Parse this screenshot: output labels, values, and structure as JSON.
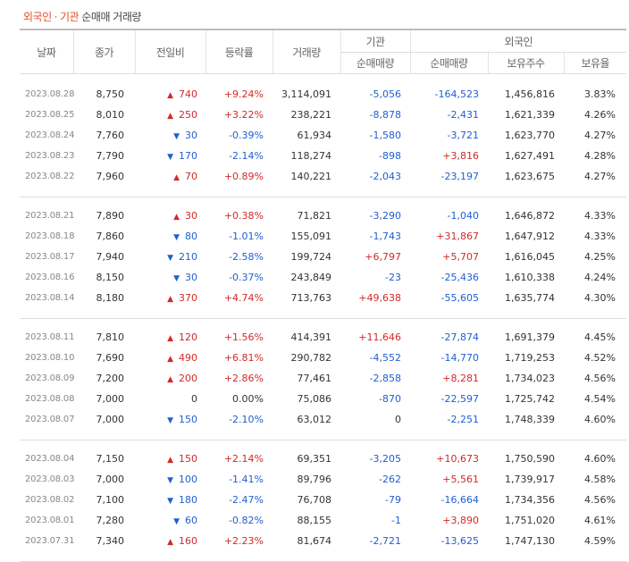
{
  "title": {
    "part1": "외국인",
    "separator": "·",
    "part2": "기관",
    "part3": "순매매 거래량"
  },
  "headers": {
    "date": "날짜",
    "close": "종가",
    "change": "전일비",
    "rate": "등락률",
    "volume": "거래량",
    "institution": "기관",
    "foreign": "외국인",
    "inst_net": "순매매량",
    "frgn_net": "순매매량",
    "frgn_hold": "보유주수",
    "frgn_ratio": "보유율"
  },
  "colors": {
    "up": "#d12a2a",
    "down": "#1f5fd0",
    "accent": "#e0502b"
  },
  "groups": [
    [
      {
        "date": "2023.08.28",
        "close": "8,750",
        "dir": "up",
        "change": "740",
        "rate": "+9.24%",
        "volume": "3,114,091",
        "inst": "-5,056",
        "frgn": "-164,523",
        "hold": "1,456,816",
        "ratio": "3.83%"
      },
      {
        "date": "2023.08.25",
        "close": "8,010",
        "dir": "up",
        "change": "250",
        "rate": "+3.22%",
        "volume": "238,221",
        "inst": "-8,878",
        "frgn": "-2,431",
        "hold": "1,621,339",
        "ratio": "4.26%"
      },
      {
        "date": "2023.08.24",
        "close": "7,760",
        "dir": "down",
        "change": "30",
        "rate": "-0.39%",
        "volume": "61,934",
        "inst": "-1,580",
        "frgn": "-3,721",
        "hold": "1,623,770",
        "ratio": "4.27%"
      },
      {
        "date": "2023.08.23",
        "close": "7,790",
        "dir": "down",
        "change": "170",
        "rate": "-2.14%",
        "volume": "118,274",
        "inst": "-898",
        "frgn": "+3,816",
        "hold": "1,627,491",
        "ratio": "4.28%"
      },
      {
        "date": "2023.08.22",
        "close": "7,960",
        "dir": "up",
        "change": "70",
        "rate": "+0.89%",
        "volume": "140,221",
        "inst": "-2,043",
        "frgn": "-23,197",
        "hold": "1,623,675",
        "ratio": "4.27%"
      }
    ],
    [
      {
        "date": "2023.08.21",
        "close": "7,890",
        "dir": "up",
        "change": "30",
        "rate": "+0.38%",
        "volume": "71,821",
        "inst": "-3,290",
        "frgn": "-1,040",
        "hold": "1,646,872",
        "ratio": "4.33%"
      },
      {
        "date": "2023.08.18",
        "close": "7,860",
        "dir": "down",
        "change": "80",
        "rate": "-1.01%",
        "volume": "155,091",
        "inst": "-1,743",
        "frgn": "+31,867",
        "hold": "1,647,912",
        "ratio": "4.33%"
      },
      {
        "date": "2023.08.17",
        "close": "7,940",
        "dir": "down",
        "change": "210",
        "rate": "-2.58%",
        "volume": "199,724",
        "inst": "+6,797",
        "frgn": "+5,707",
        "hold": "1,616,045",
        "ratio": "4.25%"
      },
      {
        "date": "2023.08.16",
        "close": "8,150",
        "dir": "down",
        "change": "30",
        "rate": "-0.37%",
        "volume": "243,849",
        "inst": "-23",
        "frgn": "-25,436",
        "hold": "1,610,338",
        "ratio": "4.24%"
      },
      {
        "date": "2023.08.14",
        "close": "8,180",
        "dir": "up",
        "change": "370",
        "rate": "+4.74%",
        "volume": "713,763",
        "inst": "+49,638",
        "frgn": "-55,605",
        "hold": "1,635,774",
        "ratio": "4.30%"
      }
    ],
    [
      {
        "date": "2023.08.11",
        "close": "7,810",
        "dir": "up",
        "change": "120",
        "rate": "+1.56%",
        "volume": "414,391",
        "inst": "+11,646",
        "frgn": "-27,874",
        "hold": "1,691,379",
        "ratio": "4.45%"
      },
      {
        "date": "2023.08.10",
        "close": "7,690",
        "dir": "up",
        "change": "490",
        "rate": "+6.81%",
        "volume": "290,782",
        "inst": "-4,552",
        "frgn": "-14,770",
        "hold": "1,719,253",
        "ratio": "4.52%"
      },
      {
        "date": "2023.08.09",
        "close": "7,200",
        "dir": "up",
        "change": "200",
        "rate": "+2.86%",
        "volume": "77,461",
        "inst": "-2,858",
        "frgn": "+8,281",
        "hold": "1,734,023",
        "ratio": "4.56%"
      },
      {
        "date": "2023.08.08",
        "close": "7,000",
        "dir": "flat",
        "change": "0",
        "rate": "0.00%",
        "volume": "75,086",
        "inst": "-870",
        "frgn": "-22,597",
        "hold": "1,725,742",
        "ratio": "4.54%"
      },
      {
        "date": "2023.08.07",
        "close": "7,000",
        "dir": "down",
        "change": "150",
        "rate": "-2.10%",
        "volume": "63,012",
        "inst": "0",
        "frgn": "-2,251",
        "hold": "1,748,339",
        "ratio": "4.60%"
      }
    ],
    [
      {
        "date": "2023.08.04",
        "close": "7,150",
        "dir": "up",
        "change": "150",
        "rate": "+2.14%",
        "volume": "69,351",
        "inst": "-3,205",
        "frgn": "+10,673",
        "hold": "1,750,590",
        "ratio": "4.60%"
      },
      {
        "date": "2023.08.03",
        "close": "7,000",
        "dir": "down",
        "change": "100",
        "rate": "-1.41%",
        "volume": "89,796",
        "inst": "-262",
        "frgn": "+5,561",
        "hold": "1,739,917",
        "ratio": "4.58%"
      },
      {
        "date": "2023.08.02",
        "close": "7,100",
        "dir": "down",
        "change": "180",
        "rate": "-2.47%",
        "volume": "76,708",
        "inst": "-79",
        "frgn": "-16,664",
        "hold": "1,734,356",
        "ratio": "4.56%"
      },
      {
        "date": "2023.08.01",
        "close": "7,280",
        "dir": "down",
        "change": "60",
        "rate": "-0.82%",
        "volume": "88,155",
        "inst": "-1",
        "frgn": "+3,890",
        "hold": "1,751,020",
        "ratio": "4.61%"
      },
      {
        "date": "2023.07.31",
        "close": "7,340",
        "dir": "up",
        "change": "160",
        "rate": "+2.23%",
        "volume": "81,674",
        "inst": "-2,721",
        "frgn": "-13,625",
        "hold": "1,747,130",
        "ratio": "4.59%"
      }
    ]
  ]
}
